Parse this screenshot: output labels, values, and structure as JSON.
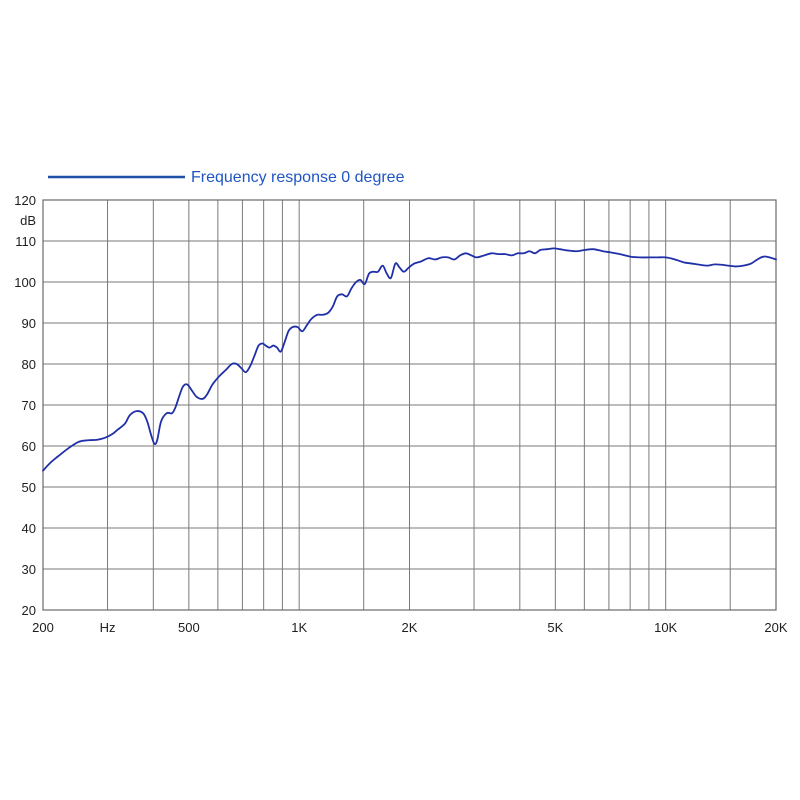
{
  "colors": {
    "curve": "#1f2fa8",
    "legend_line": "#1f4fa8",
    "legend_text": "#1f55c4",
    "grid": "#7a7a7a",
    "frame": "#6a6a6a"
  },
  "chart_data": {
    "type": "line",
    "xscale": "log",
    "xlim": [
      200,
      20000
    ],
    "ylim": [
      20,
      120
    ],
    "x_ticks": [
      {
        "value": 200,
        "label": "200"
      },
      {
        "value": 300,
        "label": "Hz"
      },
      {
        "value": 500,
        "label": "500"
      },
      {
        "value": 1000,
        "label": "1K"
      },
      {
        "value": 2000,
        "label": "2K"
      },
      {
        "value": 5000,
        "label": "5K"
      },
      {
        "value": 10000,
        "label": "10K"
      },
      {
        "value": 20000,
        "label": "20K"
      }
    ],
    "x_gridlines": [
      200,
      300,
      400,
      500,
      600,
      700,
      800,
      900,
      1000,
      1500,
      2000,
      3000,
      4000,
      5000,
      6000,
      7000,
      8000,
      9000,
      10000,
      15000,
      20000
    ],
    "y_ticks": [
      {
        "value": 20,
        "label": "20"
      },
      {
        "value": 30,
        "label": "30"
      },
      {
        "value": 40,
        "label": "40"
      },
      {
        "value": 50,
        "label": "50"
      },
      {
        "value": 60,
        "label": "60"
      },
      {
        "value": 70,
        "label": "70"
      },
      {
        "value": 80,
        "label": "80"
      },
      {
        "value": 90,
        "label": "90"
      },
      {
        "value": 100,
        "label": "100"
      },
      {
        "value": 110,
        "label": "110"
      },
      {
        "value": 120,
        "label": "120"
      }
    ],
    "yunit": "dB",
    "grid": true,
    "legend_position": "top-left",
    "series": [
      {
        "name": "Frequency response 0 degree",
        "points": [
          [
            200,
            54.0
          ],
          [
            210,
            56.0
          ],
          [
            220,
            57.5
          ],
          [
            235,
            59.5
          ],
          [
            250,
            61.0
          ],
          [
            265,
            61.4
          ],
          [
            280,
            61.5
          ],
          [
            295,
            62.0
          ],
          [
            310,
            63.0
          ],
          [
            320,
            64.0
          ],
          [
            335,
            65.5
          ],
          [
            345,
            67.5
          ],
          [
            360,
            68.5
          ],
          [
            375,
            68.0
          ],
          [
            385,
            66.0
          ],
          [
            395,
            62.5
          ],
          [
            403,
            60.5
          ],
          [
            410,
            61.5
          ],
          [
            420,
            66.0
          ],
          [
            435,
            68.0
          ],
          [
            450,
            68.0
          ],
          [
            460,
            69.5
          ],
          [
            470,
            72.0
          ],
          [
            482,
            74.5
          ],
          [
            495,
            75.0
          ],
          [
            510,
            73.5
          ],
          [
            525,
            72.0
          ],
          [
            545,
            71.5
          ],
          [
            560,
            72.5
          ],
          [
            580,
            75.0
          ],
          [
            605,
            77.0
          ],
          [
            630,
            78.5
          ],
          [
            655,
            80.0
          ],
          [
            675,
            80.0
          ],
          [
            695,
            79.0
          ],
          [
            715,
            78.0
          ],
          [
            735,
            79.5
          ],
          [
            755,
            82.0
          ],
          [
            775,
            84.5
          ],
          [
            795,
            85.0
          ],
          [
            810,
            84.5
          ],
          [
            830,
            84.0
          ],
          [
            850,
            84.5
          ],
          [
            870,
            84.0
          ],
          [
            890,
            83.0
          ],
          [
            910,
            85.0
          ],
          [
            935,
            88.0
          ],
          [
            960,
            89.0
          ],
          [
            990,
            89.0
          ],
          [
            1020,
            88.0
          ],
          [
            1050,
            89.5
          ],
          [
            1080,
            91.0
          ],
          [
            1120,
            92.0
          ],
          [
            1160,
            92.0
          ],
          [
            1200,
            92.5
          ],
          [
            1235,
            94.0
          ],
          [
            1270,
            96.5
          ],
          [
            1310,
            97.0
          ],
          [
            1350,
            96.5
          ],
          [
            1390,
            98.5
          ],
          [
            1430,
            100.0
          ],
          [
            1470,
            100.5
          ],
          [
            1510,
            99.5
          ],
          [
            1550,
            102.0
          ],
          [
            1590,
            102.5
          ],
          [
            1640,
            102.5
          ],
          [
            1690,
            104.0
          ],
          [
            1735,
            102.0
          ],
          [
            1780,
            101.0
          ],
          [
            1830,
            104.5
          ],
          [
            1880,
            103.5
          ],
          [
            1930,
            102.5
          ],
          [
            1990,
            103.5
          ],
          [
            2060,
            104.5
          ],
          [
            2150,
            105.0
          ],
          [
            2250,
            105.8
          ],
          [
            2350,
            105.5
          ],
          [
            2450,
            106.0
          ],
          [
            2550,
            106.0
          ],
          [
            2650,
            105.5
          ],
          [
            2750,
            106.5
          ],
          [
            2850,
            107.0
          ],
          [
            2950,
            106.5
          ],
          [
            3050,
            106.0
          ],
          [
            3200,
            106.5
          ],
          [
            3350,
            107.0
          ],
          [
            3500,
            106.8
          ],
          [
            3650,
            106.8
          ],
          [
            3800,
            106.5
          ],
          [
            3950,
            107.0
          ],
          [
            4100,
            107.0
          ],
          [
            4250,
            107.5
          ],
          [
            4400,
            107.0
          ],
          [
            4550,
            107.8
          ],
          [
            4750,
            108.0
          ],
          [
            4950,
            108.2
          ],
          [
            5150,
            108.0
          ],
          [
            5400,
            107.7
          ],
          [
            5700,
            107.5
          ],
          [
            6000,
            107.8
          ],
          [
            6350,
            108.0
          ],
          [
            6750,
            107.5
          ],
          [
            7100,
            107.2
          ],
          [
            7500,
            106.8
          ],
          [
            8000,
            106.2
          ],
          [
            8500,
            106.0
          ],
          [
            9000,
            106.0
          ],
          [
            9500,
            106.0
          ],
          [
            10000,
            106.0
          ],
          [
            10600,
            105.5
          ],
          [
            11200,
            104.8
          ],
          [
            11800,
            104.5
          ],
          [
            12400,
            104.2
          ],
          [
            13000,
            104.0
          ],
          [
            13600,
            104.3
          ],
          [
            14200,
            104.2
          ],
          [
            14800,
            104.0
          ],
          [
            15500,
            103.8
          ],
          [
            16300,
            104.0
          ],
          [
            17100,
            104.5
          ],
          [
            17800,
            105.5
          ],
          [
            18500,
            106.2
          ],
          [
            19200,
            106.0
          ],
          [
            20000,
            105.5
          ]
        ]
      }
    ]
  }
}
